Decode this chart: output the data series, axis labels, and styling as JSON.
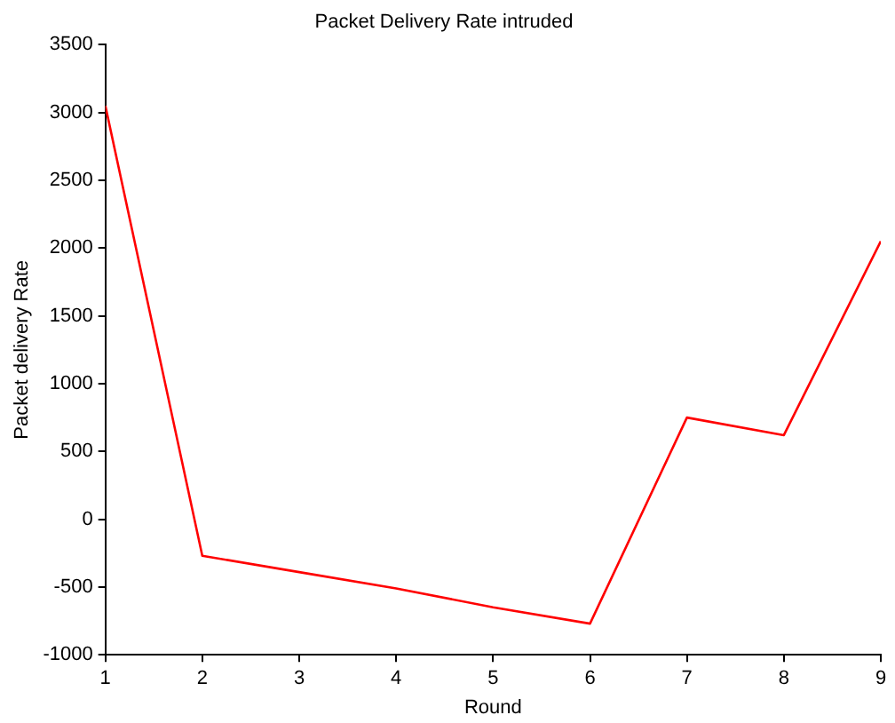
{
  "chart_data": {
    "type": "line",
    "title": "Packet Delivery Rate intruded",
    "xlabel": "Round",
    "ylabel": "Packet delivery Rate",
    "x": [
      1,
      2,
      3,
      4,
      5,
      6,
      7,
      8,
      9
    ],
    "series": [
      {
        "color": "#ff0000",
        "values": [
          3050,
          -270,
          -390,
          -510,
          -650,
          -770,
          750,
          620,
          2050
        ]
      }
    ],
    "xlim": [
      1,
      9
    ],
    "xticks": [
      1,
      2,
      3,
      4,
      5,
      6,
      7,
      8,
      9
    ],
    "ylim": [
      -1000,
      3500
    ],
    "yticks": [
      -1000,
      -500,
      0,
      500,
      1000,
      1500,
      2000,
      2500,
      3000,
      3500
    ],
    "grid": false,
    "legend": false,
    "marker": "none",
    "line_style": "solid"
  }
}
